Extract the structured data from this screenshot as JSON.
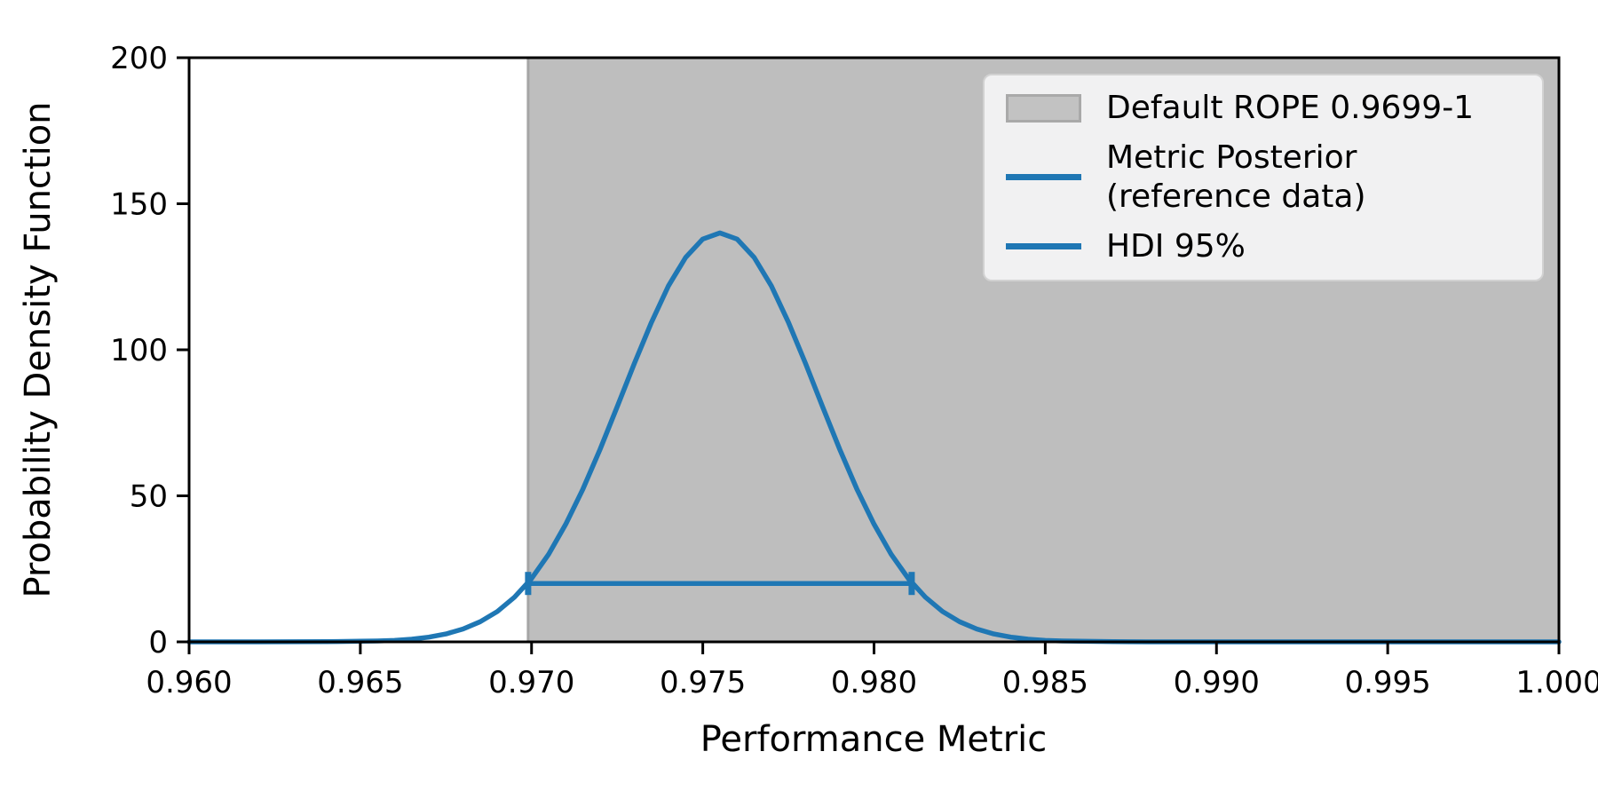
{
  "chart_data": {
    "type": "line",
    "title": "",
    "xlabel": "Performance Metric",
    "ylabel": "Probability Density Function",
    "xlim": [
      0.96,
      1.0
    ],
    "ylim": [
      0,
      200
    ],
    "grid": false,
    "xticks": [
      {
        "value": 0.96,
        "label": "0.960"
      },
      {
        "value": 0.965,
        "label": "0.965"
      },
      {
        "value": 0.97,
        "label": "0.970"
      },
      {
        "value": 0.975,
        "label": "0.975"
      },
      {
        "value": 0.98,
        "label": "0.980"
      },
      {
        "value": 0.985,
        "label": "0.985"
      },
      {
        "value": 0.99,
        "label": "0.990"
      },
      {
        "value": 0.995,
        "label": "0.995"
      },
      {
        "value": 1.0,
        "label": "1.000"
      }
    ],
    "yticks": [
      {
        "value": 0,
        "label": "0"
      },
      {
        "value": 50,
        "label": "50"
      },
      {
        "value": 100,
        "label": "100"
      },
      {
        "value": 150,
        "label": "150"
      },
      {
        "value": 200,
        "label": "200"
      }
    ],
    "colors": {
      "posterior_line": "#1f77b4",
      "rope_fill": "#bebebe",
      "rope_edge": "#a5a5a5",
      "axis": "#000000",
      "legend_bg": "#f1f1f2",
      "legend_border": "#d2d2d2",
      "legend_patch_fill": "#c2c2c2",
      "legend_patch_border": "#a9a9a9"
    },
    "rope": {
      "start": 0.9699,
      "end": 1.0,
      "label": "Default ROPE 0.9699-1"
    },
    "hdi": {
      "level": "95%",
      "lower": 0.9699,
      "upper": 0.9811,
      "y": 20,
      "label": "HDI 95%"
    },
    "series": [
      {
        "name": "Metric Posterior (reference data)",
        "peak_x": 0.9755,
        "peak_y": 140,
        "x": [
          0.96,
          0.962,
          0.964,
          0.965,
          0.9655,
          0.966,
          0.9665,
          0.967,
          0.9675,
          0.968,
          0.9685,
          0.969,
          0.9695,
          0.97,
          0.9705,
          0.971,
          0.9715,
          0.972,
          0.9725,
          0.973,
          0.9735,
          0.974,
          0.9745,
          0.975,
          0.9755,
          0.976,
          0.9765,
          0.977,
          0.9775,
          0.978,
          0.9785,
          0.979,
          0.9795,
          0.98,
          0.9805,
          0.981,
          0.9815,
          0.982,
          0.9825,
          0.983,
          0.9835,
          0.984,
          0.9845,
          0.985,
          0.9855,
          0.986,
          0.987,
          0.988,
          0.99,
          0.992,
          0.994,
          0.996,
          0.998,
          1.0
        ],
        "y": [
          0,
          0,
          0.05,
          0.2,
          0.3,
          0.5,
          0.9,
          1.6,
          2.7,
          4.4,
          6.9,
          10.4,
          15.3,
          21.7,
          30.0,
          40.3,
          52.3,
          65.9,
          80.5,
          95.3,
          109.4,
          121.9,
          131.6,
          137.9,
          140.0,
          137.9,
          131.6,
          121.9,
          109.4,
          95.3,
          80.5,
          65.9,
          52.3,
          40.3,
          30.0,
          21.7,
          15.3,
          10.4,
          6.9,
          4.4,
          2.7,
          1.6,
          0.9,
          0.5,
          0.3,
          0.2,
          0.05,
          0,
          0,
          0,
          0,
          0,
          0,
          0
        ]
      }
    ],
    "legend": {
      "position": "upper right",
      "entries": [
        {
          "swatch": "patch",
          "label": "Default ROPE 0.9699-1"
        },
        {
          "swatch": "line",
          "label": "Metric Posterior\n (reference data)"
        },
        {
          "swatch": "line",
          "label": "HDI 95%"
        }
      ]
    }
  }
}
